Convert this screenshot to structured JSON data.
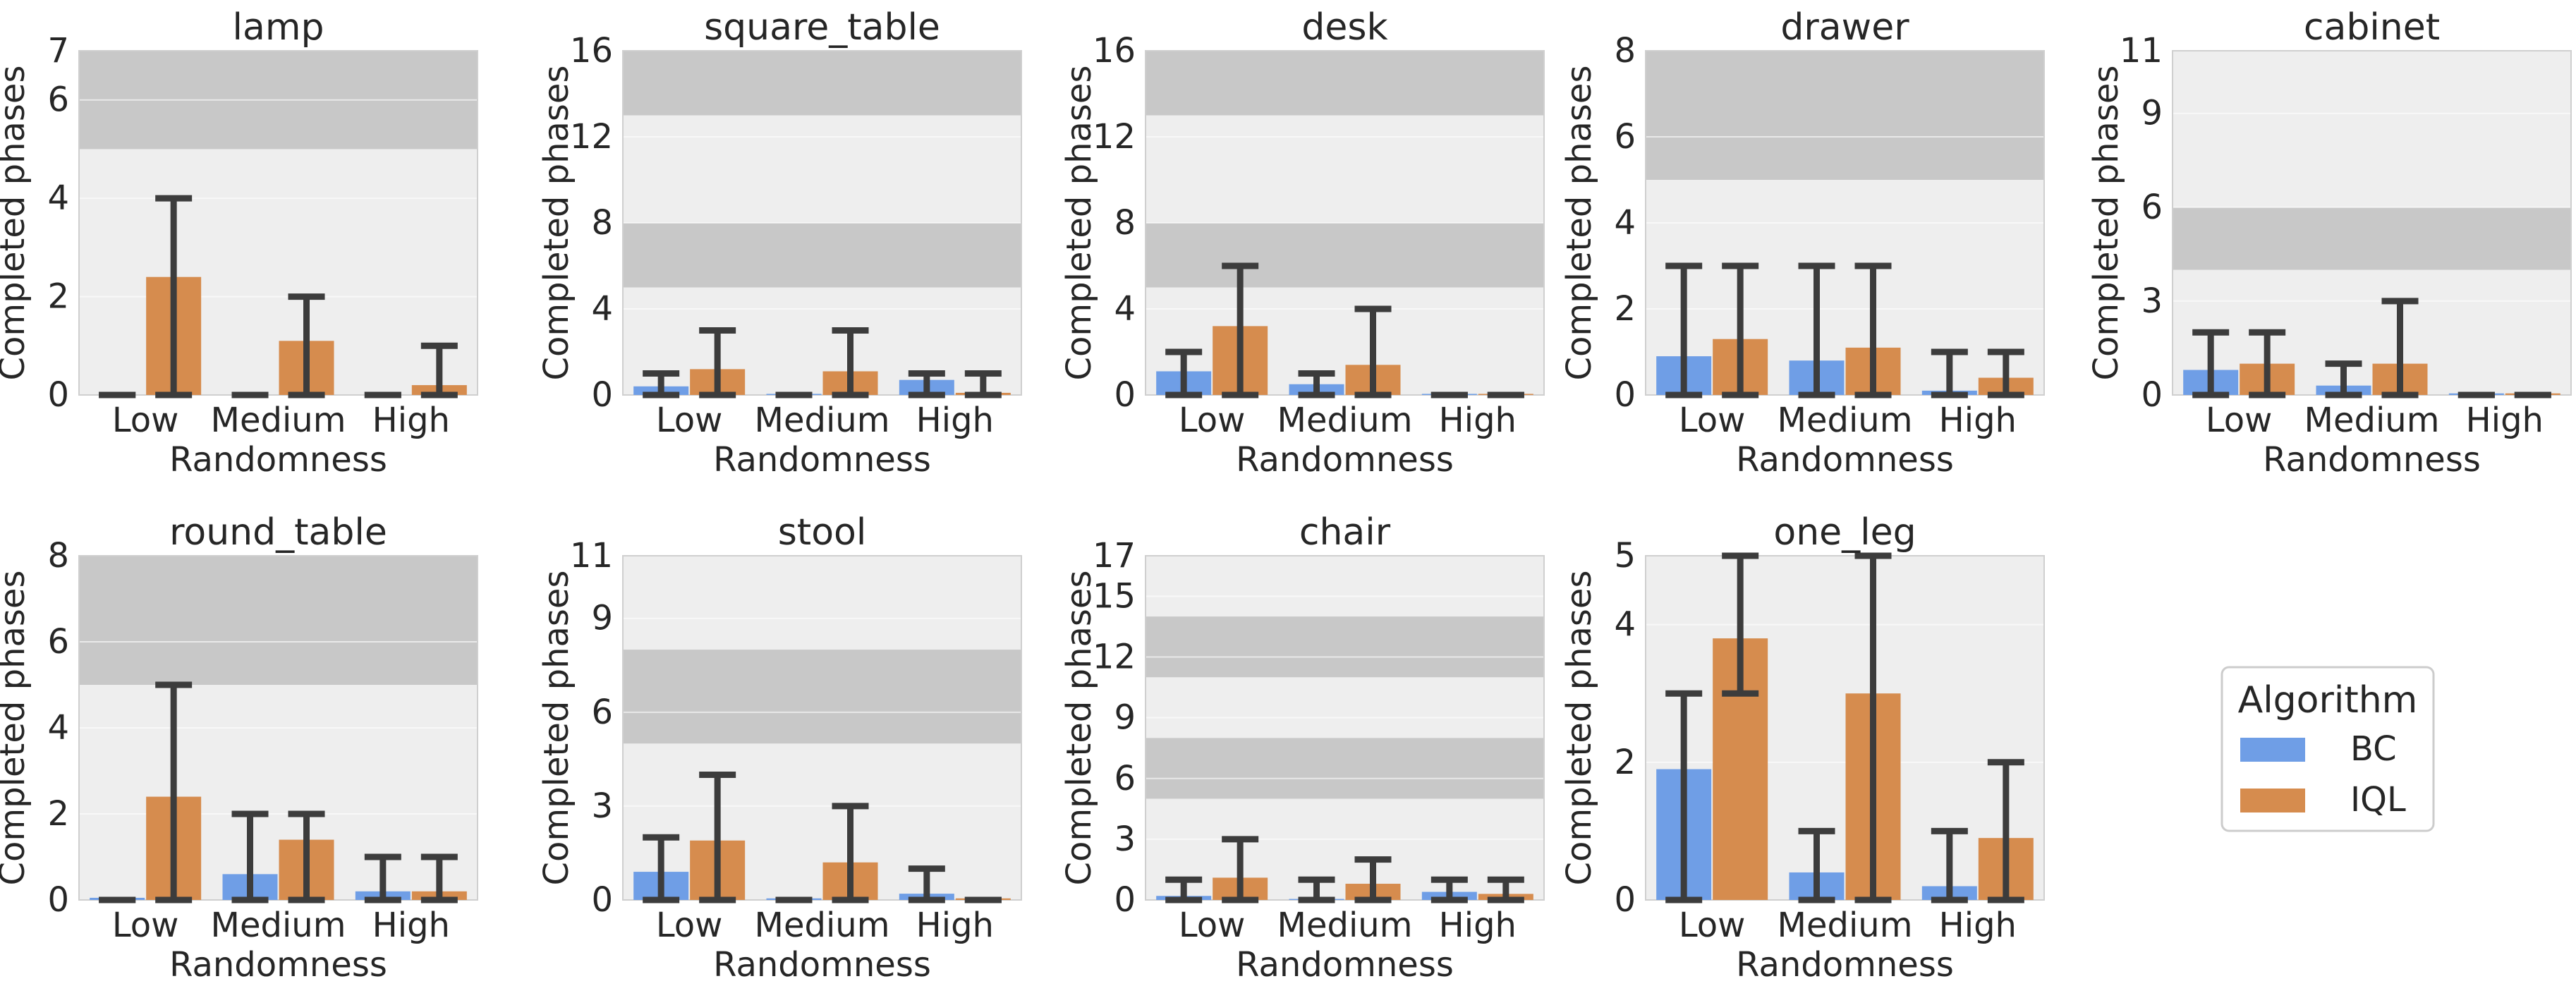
{
  "colors": {
    "BC": "#6f9ee6",
    "IQL": "#d68c4e",
    "panel_bg": "#eeeeee",
    "band": "#c8c8c8",
    "errorbar": "#3c3c3c"
  },
  "legend": {
    "title": "Algorithm",
    "items": [
      {
        "label": "BC",
        "color_key": "BC"
      },
      {
        "label": "IQL",
        "color_key": "IQL"
      }
    ]
  },
  "chart_data": [
    {
      "type": "bar",
      "title": "lamp",
      "xlabel": "Randomness",
      "ylabel": "Completed phases",
      "categories": [
        "Low",
        "Medium",
        "High"
      ],
      "ylim": [
        0,
        7
      ],
      "yticks": [
        0,
        2,
        4,
        6,
        7
      ],
      "shaded_bands": [
        [
          5,
          7
        ]
      ],
      "series": [
        {
          "name": "BC",
          "values": [
            0,
            0,
            0
          ],
          "err_low": [
            0,
            0,
            0
          ],
          "err_high": [
            0,
            0,
            0
          ]
        },
        {
          "name": "IQL",
          "values": [
            2.4,
            1.1,
            0.2
          ],
          "err_low": [
            0,
            0,
            0
          ],
          "err_high": [
            4,
            2,
            1
          ]
        }
      ]
    },
    {
      "type": "bar",
      "title": "square_table",
      "xlabel": "Randomness",
      "ylabel": "Completed phases",
      "categories": [
        "Low",
        "Medium",
        "High"
      ],
      "ylim": [
        0,
        16
      ],
      "yticks": [
        0,
        4,
        8,
        12,
        16
      ],
      "shaded_bands": [
        [
          5,
          8
        ],
        [
          13,
          16
        ]
      ],
      "series": [
        {
          "name": "BC",
          "values": [
            0.4,
            0.05,
            0.7
          ],
          "err_low": [
            0,
            0,
            0
          ],
          "err_high": [
            1,
            0,
            1
          ]
        },
        {
          "name": "IQL",
          "values": [
            1.2,
            1.1,
            0.1
          ],
          "err_low": [
            0,
            0,
            0
          ],
          "err_high": [
            3,
            3,
            1
          ]
        }
      ]
    },
    {
      "type": "bar",
      "title": "desk",
      "xlabel": "Randomness",
      "ylabel": "Completed phases",
      "categories": [
        "Low",
        "Medium",
        "High"
      ],
      "ylim": [
        0,
        16
      ],
      "yticks": [
        0,
        4,
        8,
        12,
        16
      ],
      "shaded_bands": [
        [
          5,
          8
        ],
        [
          13,
          16
        ]
      ],
      "series": [
        {
          "name": "BC",
          "values": [
            1.1,
            0.5,
            0.05
          ],
          "err_low": [
            0,
            0,
            0
          ],
          "err_high": [
            2,
            1,
            0
          ]
        },
        {
          "name": "IQL",
          "values": [
            3.2,
            1.4,
            0.05
          ],
          "err_low": [
            0,
            0,
            0
          ],
          "err_high": [
            6,
            4,
            0
          ]
        }
      ]
    },
    {
      "type": "bar",
      "title": "drawer",
      "xlabel": "Randomness",
      "ylabel": "Completed phases",
      "categories": [
        "Low",
        "Medium",
        "High"
      ],
      "ylim": [
        0,
        8
      ],
      "yticks": [
        0,
        2,
        4,
        6,
        8
      ],
      "shaded_bands": [
        [
          5,
          8
        ]
      ],
      "series": [
        {
          "name": "BC",
          "values": [
            0.9,
            0.8,
            0.1
          ],
          "err_low": [
            0,
            0,
            0
          ],
          "err_high": [
            3,
            3,
            1
          ]
        },
        {
          "name": "IQL",
          "values": [
            1.3,
            1.1,
            0.4
          ],
          "err_low": [
            0,
            0,
            0
          ],
          "err_high": [
            3,
            3,
            1
          ]
        }
      ]
    },
    {
      "type": "bar",
      "title": "cabinet",
      "xlabel": "Randomness",
      "ylabel": "Completed phases",
      "categories": [
        "Low",
        "Medium",
        "High"
      ],
      "ylim": [
        0,
        11
      ],
      "yticks": [
        0,
        3,
        6,
        9,
        11
      ],
      "shaded_bands": [
        [
          4,
          6
        ]
      ],
      "series": [
        {
          "name": "BC",
          "values": [
            0.8,
            0.3,
            0.05
          ],
          "err_low": [
            0,
            0,
            0
          ],
          "err_high": [
            2,
            1,
            0
          ]
        },
        {
          "name": "IQL",
          "values": [
            1.0,
            1.0,
            0.05
          ],
          "err_low": [
            0,
            0,
            0
          ],
          "err_high": [
            2,
            3,
            0
          ]
        }
      ]
    },
    {
      "type": "bar",
      "title": "round_table",
      "xlabel": "Randomness",
      "ylabel": "Completed phases",
      "categories": [
        "Low",
        "Medium",
        "High"
      ],
      "ylim": [
        0,
        8
      ],
      "yticks": [
        0,
        2,
        4,
        6,
        8
      ],
      "shaded_bands": [
        [
          5,
          8
        ]
      ],
      "series": [
        {
          "name": "BC",
          "values": [
            0.05,
            0.6,
            0.2
          ],
          "err_low": [
            0,
            0,
            0
          ],
          "err_high": [
            0,
            2,
            1
          ]
        },
        {
          "name": "IQL",
          "values": [
            2.4,
            1.4,
            0.2
          ],
          "err_low": [
            0,
            0,
            0
          ],
          "err_high": [
            5,
            2,
            1
          ]
        }
      ]
    },
    {
      "type": "bar",
      "title": "stool",
      "xlabel": "Randomness",
      "ylabel": "Completed phases",
      "categories": [
        "Low",
        "Medium",
        "High"
      ],
      "ylim": [
        0,
        11
      ],
      "yticks": [
        0,
        3,
        6,
        9,
        11
      ],
      "shaded_bands": [
        [
          5,
          8
        ]
      ],
      "series": [
        {
          "name": "BC",
          "values": [
            0.9,
            0.05,
            0.2
          ],
          "err_low": [
            0,
            0,
            0
          ],
          "err_high": [
            2,
            0,
            1
          ]
        },
        {
          "name": "IQL",
          "values": [
            1.9,
            1.2,
            0.05
          ],
          "err_low": [
            0,
            0,
            0
          ],
          "err_high": [
            4,
            3,
            0
          ]
        }
      ]
    },
    {
      "type": "bar",
      "title": "chair",
      "xlabel": "Randomness",
      "ylabel": "Completed phases",
      "categories": [
        "Low",
        "Medium",
        "High"
      ],
      "ylim": [
        0,
        17
      ],
      "yticks": [
        0,
        3,
        6,
        9,
        12,
        15,
        17
      ],
      "shaded_bands": [
        [
          5,
          8
        ],
        [
          11,
          14
        ]
      ],
      "series": [
        {
          "name": "BC",
          "values": [
            0.2,
            0.05,
            0.4
          ],
          "err_low": [
            0,
            0,
            0
          ],
          "err_high": [
            1,
            1,
            1
          ]
        },
        {
          "name": "IQL",
          "values": [
            1.1,
            0.8,
            0.3
          ],
          "err_low": [
            0,
            0,
            0
          ],
          "err_high": [
            3,
            2,
            1
          ]
        }
      ]
    },
    {
      "type": "bar",
      "title": "one_leg",
      "xlabel": "Randomness",
      "ylabel": "Completed phases",
      "categories": [
        "Low",
        "Medium",
        "High"
      ],
      "ylim": [
        0,
        5
      ],
      "yticks": [
        0,
        2,
        4,
        5
      ],
      "shaded_bands": [],
      "series": [
        {
          "name": "BC",
          "values": [
            1.9,
            0.4,
            0.2
          ],
          "err_low": [
            0,
            0,
            0
          ],
          "err_high": [
            3,
            1,
            1
          ]
        },
        {
          "name": "IQL",
          "values": [
            3.8,
            3.0,
            0.9
          ],
          "err_low": [
            3,
            0,
            0
          ],
          "err_high": [
            5,
            5,
            2
          ]
        }
      ]
    }
  ]
}
